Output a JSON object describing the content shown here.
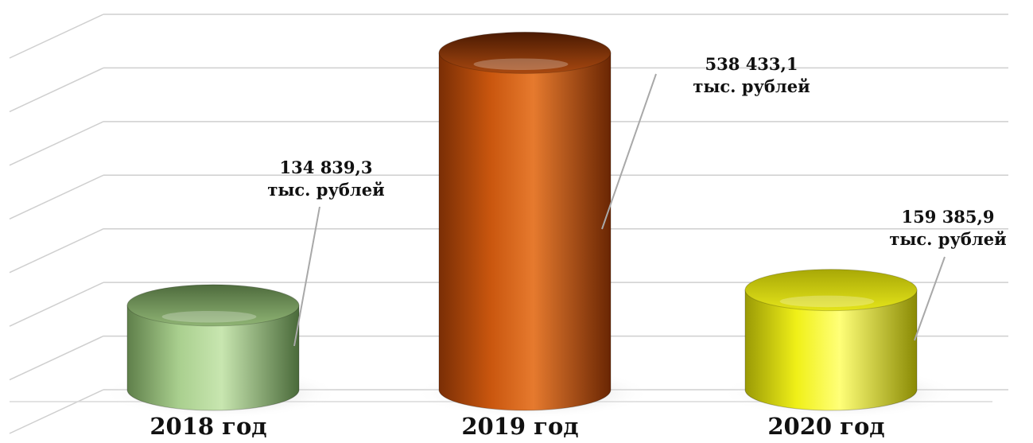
{
  "chart_data": {
    "type": "bar",
    "style": "3d-cylinder",
    "categories": [
      "2018 год",
      "2019 год",
      "2020 год"
    ],
    "values": [
      134839.3,
      538433.1,
      159385.9
    ],
    "data_labels": [
      {
        "value": "134 839,3",
        "unit": "тыс. рублей"
      },
      {
        "value": "538 433,1",
        "unit": "тыс. рублей"
      },
      {
        "value": "159 385,9",
        "unit": "тыс. рублей"
      }
    ],
    "colors": [
      "#a9cf8e",
      "#c9560e",
      "#f0f018"
    ],
    "ylim": [
      0,
      600000
    ],
    "grid": true,
    "legend": "none"
  }
}
